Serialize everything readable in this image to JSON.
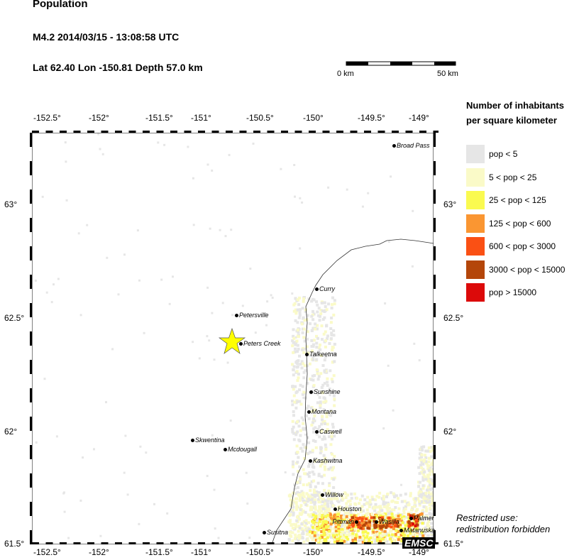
{
  "header": {
    "title": "Population",
    "event": "M4.2  2014/03/15 - 13:08:58 UTC",
    "location": "Lat 62.40    Lon -150.81     Depth  57.0 km"
  },
  "scale": {
    "start": "0 km",
    "end": "50 km"
  },
  "axes": {
    "lon_ticks": [
      "-152.5°",
      "-152°",
      "-151.5°",
      "-151°",
      "-150.5°",
      "-150°",
      "-149.5°",
      "-149°"
    ],
    "lat_ticks": [
      "63°",
      "62.5°",
      "62°",
      "61.5°"
    ]
  },
  "legend": {
    "title_line1": "Number of inhabitants",
    "title_line2": "per square kilometer",
    "items": [
      {
        "label": "pop < 5",
        "color": "#e6e6e6"
      },
      {
        "label": "5 < pop < 25",
        "color": "#fafac8"
      },
      {
        "label": "25 < pop < 125",
        "color": "#fafa50"
      },
      {
        "label": "125 < pop < 600",
        "color": "#fa9632"
      },
      {
        "label": "600 < pop < 3000",
        "color": "#fa5014"
      },
      {
        "label": "3000 < pop < 15000",
        "color": "#b4460a"
      },
      {
        "label": "pop > 15000",
        "color": "#dc0a0a"
      }
    ]
  },
  "cities": [
    "Broad Pass",
    "Curry",
    "Petersville",
    "Peters Creek",
    "Talkeetna",
    "Sunshine",
    "Montana",
    "Caswell",
    "Skwentina",
    "Mcdougall",
    "Kashwitna",
    "Willow",
    "Houston",
    "Pittman",
    "Wasilla",
    "Palmer",
    "Matanuska",
    "Susitna"
  ],
  "epicenter": {
    "icon": "star-icon",
    "color": "#ffff00"
  },
  "logo": "EMSC",
  "notice": {
    "line1": "Restricted use:",
    "line2": "redistribution forbidden"
  }
}
